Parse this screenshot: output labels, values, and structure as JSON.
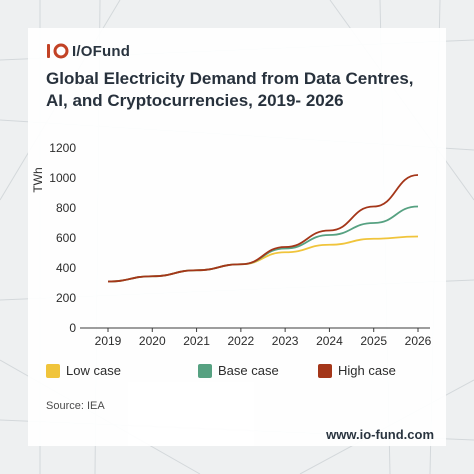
{
  "brand": {
    "name": "I/OFund",
    "website": "www.io-fund.com"
  },
  "source": "Source: IEA",
  "colors": {
    "low": "#f1c232",
    "base": "#4e9d7c",
    "high": "#a12d0e",
    "accent": "#c0391b"
  },
  "chart_data": {
    "type": "line",
    "title": "Global Electricity Demand from Data Centres, AI, and Cryptocurrencies, 2019- 2026",
    "xlabel": "",
    "ylabel": "TWh",
    "x": [
      "2019",
      "2020",
      "2021",
      "2022",
      "2023",
      "2024",
      "2025",
      "2026"
    ],
    "ylim": [
      0,
      1200
    ],
    "yticks": [
      0,
      200,
      400,
      600,
      800,
      1000,
      1200
    ],
    "grid": false,
    "legend": "bottom",
    "series": [
      {
        "name": "Low case",
        "color": "#f1c232",
        "values": [
          310,
          345,
          385,
          425,
          505,
          555,
          595,
          610
        ]
      },
      {
        "name": "Base case",
        "color": "#4e9d7c",
        "values": [
          310,
          345,
          385,
          425,
          530,
          620,
          700,
          810
        ]
      },
      {
        "name": "High case",
        "color": "#a12d0e",
        "values": [
          310,
          345,
          385,
          425,
          540,
          650,
          810,
          1020
        ]
      }
    ]
  }
}
